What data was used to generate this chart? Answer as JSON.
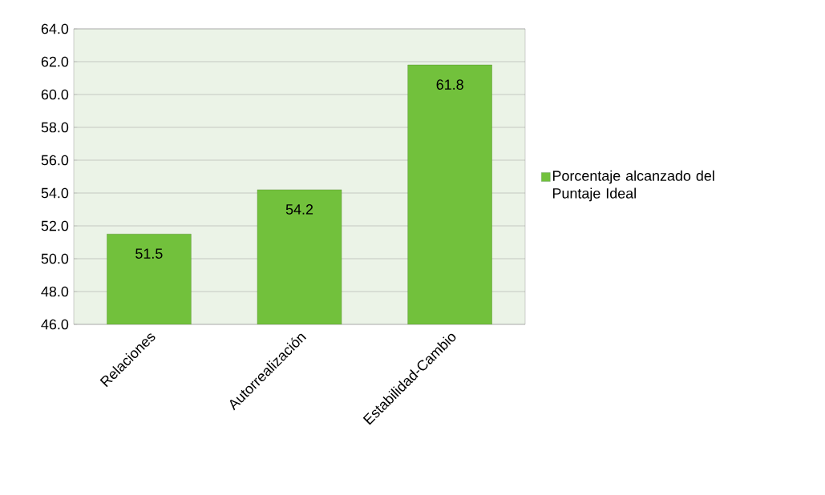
{
  "chart_data": {
    "type": "bar",
    "categories": [
      "Relaciones",
      "Autorrealización",
      "Estabilidad-Cambio"
    ],
    "series": [
      {
        "name": "Porcentaje alcanzado del Puntaje Ideal",
        "color": "#72c13c",
        "values": [
          51.5,
          54.2,
          61.8
        ]
      }
    ],
    "ylim": [
      46,
      64
    ],
    "yticks": [
      {
        "value": 46,
        "label": "46.0"
      },
      {
        "value": 48,
        "label": "48.0"
      },
      {
        "value": 50,
        "label": "50.0"
      },
      {
        "value": 52,
        "label": "52.0"
      },
      {
        "value": 54,
        "label": "54.0"
      },
      {
        "value": 56,
        "label": "56.0"
      },
      {
        "value": 58,
        "label": "58.0"
      },
      {
        "value": 60,
        "label": "60.0"
      },
      {
        "value": 62,
        "label": "62.0"
      },
      {
        "value": 64,
        "label": "64.0"
      }
    ],
    "grid": "y",
    "legend": "right",
    "data_labels": true
  }
}
